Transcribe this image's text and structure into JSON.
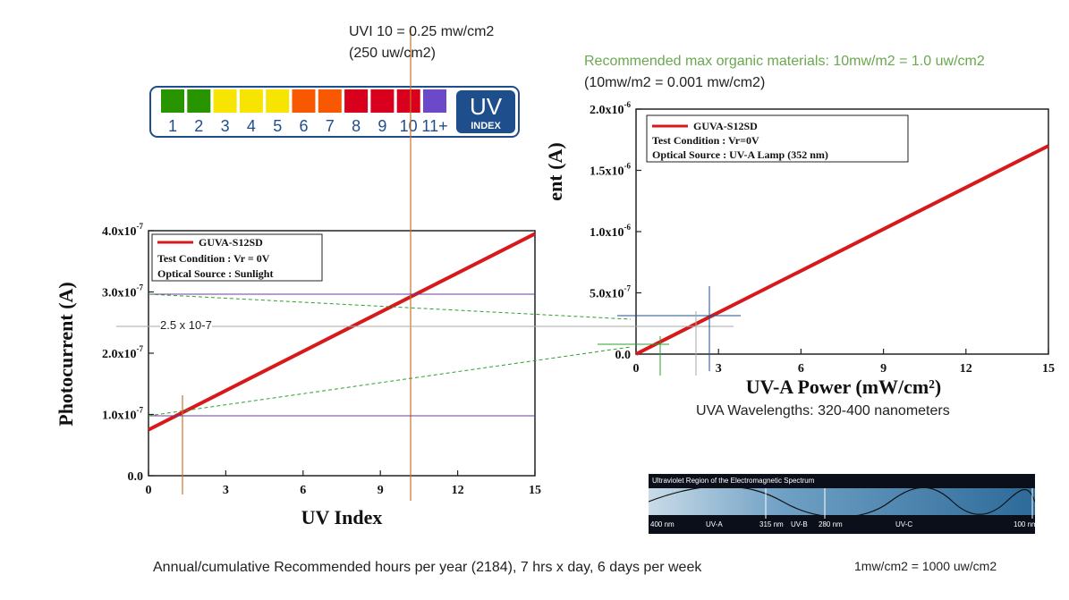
{
  "annotations": {
    "uvi_line1": "UVI 10 = 0.25 mw/cm2",
    "uvi_line2": "(250 uw/cm2)",
    "rec_max": "Recommended max organic materials: 10mw/m2 = 1.0 uw/cm2",
    "rec_conv": "(10mw/m2 = 0.001 mw/cm2)",
    "ref_label": "2.5 x 10-7",
    "uva_wavelengths": "UVA Wavelengths: 320-400 nanometers",
    "annual": "Annual/cumulative Recommended hours per year (2184), 7 hrs x day, 6 days per week",
    "conversion": "1mw/cm2 = 1000 uw/cm2"
  },
  "uv_index_scale": {
    "levels": [
      "1",
      "2",
      "3",
      "4",
      "5",
      "6",
      "7",
      "8",
      "9",
      "10",
      "11+"
    ],
    "colors": [
      "#289500",
      "#289500",
      "#f7e400",
      "#f7e400",
      "#f7e400",
      "#f85900",
      "#f85900",
      "#d8001d",
      "#d8001d",
      "#d8001d",
      "#6b49c8"
    ],
    "badge_top": "UV",
    "badge_bottom": "INDEX",
    "badge_color": "#1f4e8c"
  },
  "spectrum": {
    "title": "Ultraviolet Region of the Electromagnetic Spectrum",
    "labels": [
      "400 nm",
      "UV-A",
      "315 nm",
      "UV-B",
      "280 nm",
      "UV-C",
      "100 nm"
    ]
  },
  "chart_data": [
    {
      "type": "line",
      "title": "",
      "xlabel": "UV Index",
      "ylabel": "Photocurrent (A)",
      "xlim": [
        0,
        15
      ],
      "ylim": [
        0,
        4e-07
      ],
      "xticks": [
        0,
        3,
        6,
        9,
        12,
        15
      ],
      "xtick_labels": [
        "0",
        "3",
        "6",
        "9",
        "12",
        "15"
      ],
      "yticks": [
        0,
        1e-07,
        2e-07,
        3e-07,
        4e-07
      ],
      "ytick_labels": [
        "0.0",
        "1.0x10",
        "2.0x10",
        "3.0x10",
        "4.0x10"
      ],
      "ytick_exponent": "-7",
      "series": [
        {
          "name": "GUVA-S12SD",
          "color": "#d7191c",
          "x": [
            0,
            15
          ],
          "y": [
            7.5e-08,
            3.95e-07
          ]
        }
      ],
      "legend": {
        "position": "top-left",
        "lines": [
          "Test Condition : Vr = 0V",
          "Optical Source : Sunlight"
        ]
      },
      "grid": false
    },
    {
      "type": "line",
      "title": "",
      "xlabel": "UV-A Power (mW/cm²)",
      "ylabel": "ent (A)",
      "xlim": [
        0,
        15
      ],
      "ylim": [
        0,
        2e-06
      ],
      "xticks": [
        0,
        3,
        6,
        9,
        12,
        15
      ],
      "xtick_labels": [
        "0",
        "3",
        "6",
        "9",
        "12",
        "15"
      ],
      "yticks": [
        0,
        5e-07,
        1e-06,
        1.5e-06,
        2e-06
      ],
      "ytick_labels": [
        "0.0",
        "5.0x10",
        "1.0x10",
        "1.5x10",
        "2.0x10"
      ],
      "ytick_exponents": [
        "",
        "-7",
        "-6",
        "-6",
        "-6"
      ],
      "series": [
        {
          "name": "GUVA-S12SD",
          "color": "#d7191c",
          "x": [
            0,
            15
          ],
          "y": [
            0,
            1.7e-06
          ]
        }
      ],
      "legend": {
        "position": "top-left",
        "lines": [
          "Test Condition : Vr=0V",
          "Optical Source : UV-A Lamp (352 nm)"
        ]
      },
      "grid": false
    }
  ]
}
